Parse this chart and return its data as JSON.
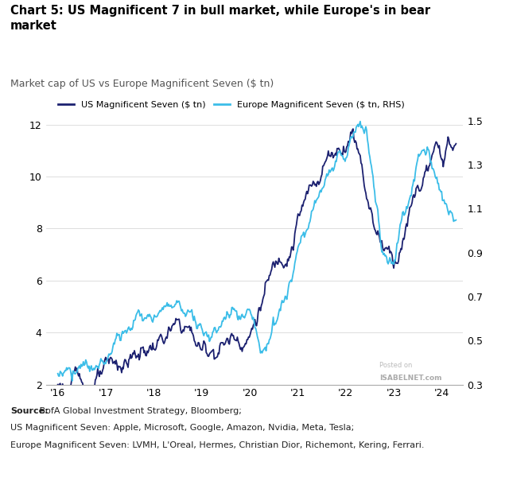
{
  "title_bold": "Chart 5: US Magnificent 7 in bull market, while Europe's in bear\nmarket",
  "subtitle": "Market cap of US vs Europe Magnificent Seven ($ tn)",
  "us_label": "US Magnificent Seven ($ tn)",
  "eu_label": "Europe Magnificent Seven ($ tn, RHS)",
  "source_text_bold": "Source:",
  "source_text_normal": " BofA Global Investment Strategy, Bloomberg;",
  "source_line2": "US Magnificent Seven: Apple, Microsoft, Google, Amazon, Nvidia, Meta, Tesla;",
  "source_line3": "Europe Magnificent Seven: LVMH, L'Oreal, Hermes, Christian Dior, Richemont, Kering, Ferrari.",
  "us_color": "#1c2170",
  "eu_color": "#3bbde8",
  "ylim_left": [
    2,
    13
  ],
  "ylim_right": [
    0.3,
    1.6
  ],
  "yticks_left": [
    2,
    4,
    6,
    8,
    10,
    12
  ],
  "yticks_right": [
    0.3,
    0.5,
    0.7,
    0.9,
    1.1,
    1.3,
    1.5
  ],
  "xtick_labels": [
    "'16",
    "'17",
    "'18",
    "'19",
    "'20",
    "'21",
    "'22",
    "'23",
    "'24"
  ],
  "watermark_line1": "Posted on",
  "watermark_line2": "ISABELNET.com",
  "background_color": "#ffffff",
  "plot_bg": "#ffffff"
}
